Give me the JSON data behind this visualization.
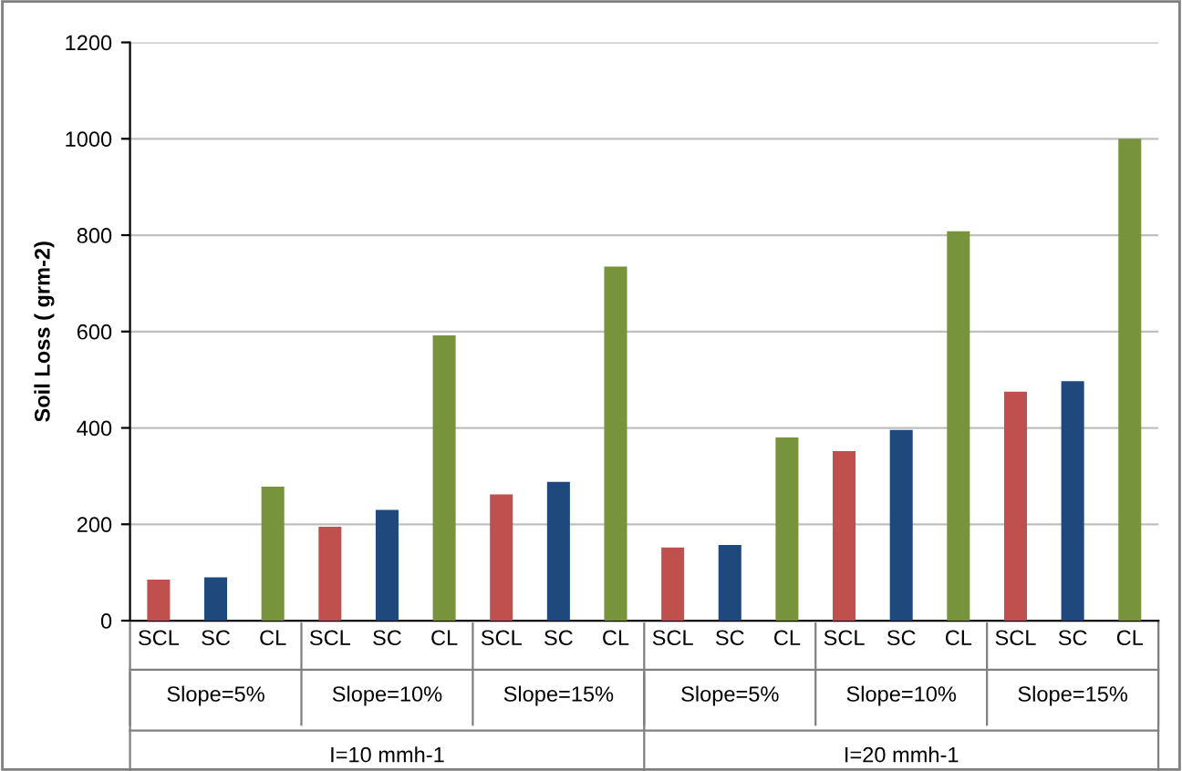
{
  "chart_data": {
    "type": "bar",
    "ylabel": "Soil Loss ( grm-2)",
    "categories": [
      "SCL",
      "SC",
      "CL",
      "SCL",
      "SC",
      "CL",
      "SCL",
      "SC",
      "CL",
      "SCL",
      "SC",
      "CL",
      "SCL",
      "SC",
      "CL",
      "SCL",
      "SC",
      "CL"
    ],
    "values": [
      85,
      90,
      278,
      195,
      230,
      592,
      262,
      288,
      735,
      152,
      157,
      380,
      352,
      396,
      808,
      475,
      497,
      1000
    ],
    "colors": [
      "#c0504d",
      "#1f497d",
      "#77933c",
      "#c0504d",
      "#1f497d",
      "#77933c",
      "#c0504d",
      "#1f497d",
      "#77933c",
      "#c0504d",
      "#1f497d",
      "#77933c",
      "#c0504d",
      "#1f497d",
      "#77933c",
      "#c0504d",
      "#1f497d",
      "#77933c"
    ],
    "ylim": [
      0,
      1200
    ],
    "yticks": [
      0,
      200,
      400,
      600,
      800,
      1000,
      1200
    ],
    "grid": "y",
    "annotations": [
      "Slope=5%",
      "Slope=10%",
      "Slope=15%",
      "Slope=5%",
      "Slope=10%",
      "Slope=15%",
      "I=10 mmh-1",
      "I=20 mmh-1"
    ]
  }
}
